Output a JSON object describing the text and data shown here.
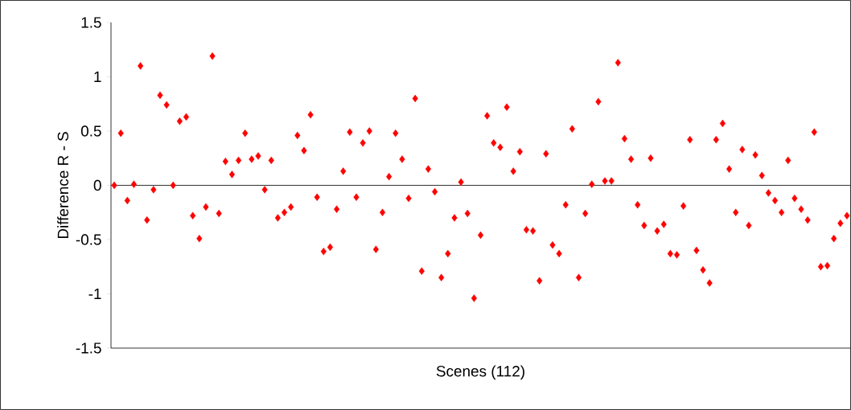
{
  "chart_data": {
    "type": "scatter",
    "xlabel": "Scenes (112)",
    "ylabel": "Difference R - S",
    "categories": [
      null,
      null,
      null,
      null,
      null,
      null,
      null,
      null,
      null,
      null,
      null,
      null,
      null,
      null,
      null,
      null,
      null,
      null,
      null,
      null,
      null,
      null,
      null,
      null,
      null,
      null,
      null,
      null,
      null,
      null,
      null,
      null,
      null,
      null,
      null,
      null,
      null,
      null,
      null,
      null,
      null,
      null,
      null,
      null,
      null,
      null,
      null,
      null,
      null,
      null,
      null,
      null,
      null,
      null,
      null,
      null,
      null,
      null,
      null,
      null,
      null,
      null,
      null,
      null,
      null,
      null,
      null,
      null,
      null,
      null,
      null,
      null,
      null,
      null,
      null,
      null,
      null,
      null,
      null,
      null,
      null,
      null,
      null,
      null,
      null,
      null,
      null,
      null,
      null,
      null,
      null,
      null,
      null,
      null,
      null,
      null,
      null,
      null,
      null,
      null,
      null,
      null,
      null,
      null,
      null,
      null,
      null,
      null,
      null,
      null,
      null,
      null,
      null
    ],
    "values": [
      0,
      0.48,
      -0.14,
      0.01,
      1.1,
      -0.32,
      -0.04,
      0.83,
      0.74,
      0,
      0.59,
      0.63,
      -0.28,
      -0.49,
      -0.2,
      1.19,
      -0.26,
      0.22,
      0.1,
      0.23,
      0.48,
      0.24,
      0.27,
      -0.04,
      0.23,
      -0.3,
      -0.25,
      -0.2,
      0.46,
      0.32,
      0.65,
      -0.11,
      -0.61,
      -0.57,
      -0.22,
      0.13,
      0.49,
      -0.11,
      0.39,
      0.5,
      -0.59,
      -0.25,
      0.08,
      0.48,
      0.24,
      -0.12,
      0.8,
      -0.79,
      0.15,
      -0.06,
      -0.85,
      -0.63,
      -0.3,
      0.03,
      -0.26,
      -1.04,
      -0.46,
      0.64,
      0.39,
      0.35,
      0.72,
      0.13,
      0.31,
      -0.41,
      -0.42,
      -0.88,
      0.29,
      -0.55,
      -0.63,
      -0.18,
      0.52,
      -0.85,
      -0.26,
      0.01,
      0.77,
      0.04,
      0.04,
      1.13,
      0.43,
      0.24,
      -0.18,
      -0.37,
      0.25,
      -0.42,
      -0.36,
      -0.63,
      -0.64,
      -0.19,
      0.42,
      -0.6,
      -0.78,
      -0.9,
      0.42,
      0.57,
      0.15,
      -0.25,
      0.33,
      -0.37,
      0.28,
      0.09,
      -0.07,
      -0.14,
      -0.25,
      0.23,
      -0.12,
      -0.22,
      -0.32,
      0.49,
      -0.75,
      -0.74,
      -0.49,
      -0.35,
      -0.28
    ],
    "color": "#ff0000",
    "marker": "diamond",
    "ylim": [
      -1.5,
      1.5
    ],
    "yticks": [
      -1.5,
      -1,
      -0.5,
      0,
      0.5,
      1,
      1.5
    ],
    "ref_lines": [
      {
        "axis": "y",
        "value": 0,
        "color": "#000000"
      }
    ],
    "grid": false,
    "tick_labels": "y"
  }
}
